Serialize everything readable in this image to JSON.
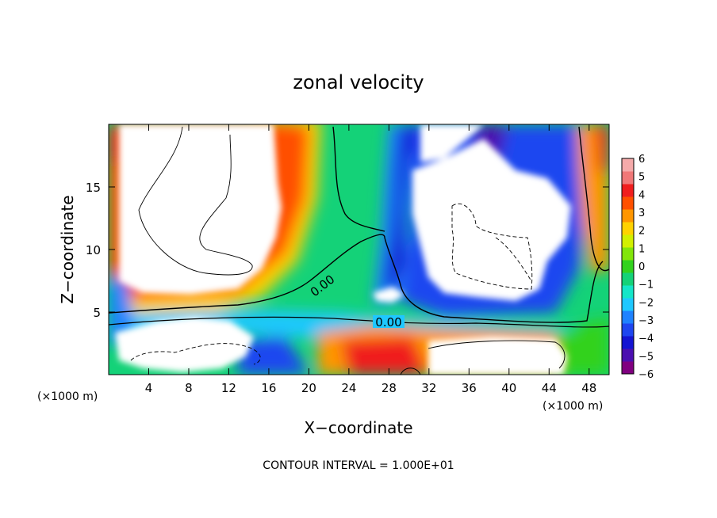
{
  "chart_data": {
    "type": "heatmap",
    "title": "zonal velocity",
    "xlabel": "X−coordinate",
    "ylabel": "Z−coordinate",
    "x_unit_left": "(×1000 m)",
    "x_unit_right": "(×1000 m)",
    "footer": "CONTOUR INTERVAL = 1.000E+01",
    "xlim": [
      0,
      50
    ],
    "ylim": [
      0,
      20
    ],
    "x_ticks": [
      4,
      8,
      12,
      16,
      20,
      24,
      28,
      32,
      36,
      40,
      44,
      48
    ],
    "y_ticks": [
      5,
      10,
      15
    ],
    "colorbar": {
      "min": -6,
      "max": 6,
      "labels": [
        "6",
        "5",
        "4",
        "3",
        "2",
        "1",
        "0",
        "−1",
        "−2",
        "−3",
        "−4",
        "−5",
        "−6"
      ],
      "colors": [
        "#800080",
        "#4b0fb0",
        "#1414d2",
        "#1e46f0",
        "#1e82ff",
        "#1ec8ff",
        "#14e6c8",
        "#14d278",
        "#32d21e",
        "#82e60a",
        "#d2f000",
        "#ffd200",
        "#ff9600",
        "#ff5000",
        "#f01e1e",
        "#f07878",
        "#f5aaaa"
      ]
    },
    "contour_labels": [
      {
        "text": "0.00",
        "x": 20.5,
        "y": 7.4
      },
      {
        "text": "0.00",
        "x": 29.0,
        "y": 4.0
      }
    ]
  }
}
